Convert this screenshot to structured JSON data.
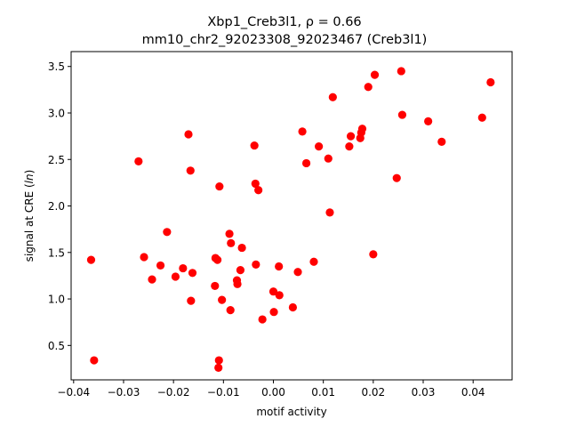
{
  "chart_data": {
    "type": "scatter",
    "title_line1": "Xbp1_Creb3l1, ",
    "title_rho": "ρ = 0.66",
    "title_line2": "mm10_chr2_92023308_92023467 (Creb3l1)",
    "xlabel": "motif activity",
    "ylabel_prefix": "signal at CRE (",
    "ylabel_italic": "ln",
    "ylabel_suffix": ")",
    "xlim": [
      -0.0405,
      0.0478
    ],
    "ylim": [
      0.13,
      3.66
    ],
    "xticks": [
      -0.04,
      -0.03,
      -0.02,
      -0.01,
      0.0,
      0.01,
      0.02,
      0.03,
      0.04
    ],
    "xtick_labels": [
      "−0.04",
      "−0.03",
      "−0.02",
      "−0.01",
      "0.00",
      "0.01",
      "0.02",
      "0.03",
      "0.04"
    ],
    "yticks": [
      0.5,
      1.0,
      1.5,
      2.0,
      2.5,
      3.0,
      3.5
    ],
    "ytick_labels": [
      "0.5",
      "1.0",
      "1.5",
      "2.0",
      "2.5",
      "3.0",
      "3.5"
    ],
    "grid": false,
    "marker_color": "#ff0000",
    "points": [
      {
        "x": -0.0365,
        "y": 1.42
      },
      {
        "x": -0.0359,
        "y": 0.34
      },
      {
        "x": -0.027,
        "y": 2.48
      },
      {
        "x": -0.0259,
        "y": 1.45
      },
      {
        "x": -0.0243,
        "y": 1.21
      },
      {
        "x": -0.0226,
        "y": 1.36
      },
      {
        "x": -0.0213,
        "y": 1.72
      },
      {
        "x": -0.0196,
        "y": 1.24
      },
      {
        "x": -0.0181,
        "y": 1.33
      },
      {
        "x": -0.017,
        "y": 2.77
      },
      {
        "x": -0.0166,
        "y": 2.38
      },
      {
        "x": -0.0165,
        "y": 0.98
      },
      {
        "x": -0.0162,
        "y": 1.28
      },
      {
        "x": -0.0117,
        "y": 1.14
      },
      {
        "x": -0.0116,
        "y": 1.44
      },
      {
        "x": -0.0112,
        "y": 1.42
      },
      {
        "x": -0.011,
        "y": 0.26
      },
      {
        "x": -0.0109,
        "y": 0.34
      },
      {
        "x": -0.0108,
        "y": 2.21
      },
      {
        "x": -0.0103,
        "y": 0.99
      },
      {
        "x": -0.0088,
        "y": 1.7
      },
      {
        "x": -0.0086,
        "y": 0.88
      },
      {
        "x": -0.0085,
        "y": 1.6
      },
      {
        "x": -0.0073,
        "y": 1.2
      },
      {
        "x": -0.0072,
        "y": 1.16
      },
      {
        "x": -0.0066,
        "y": 1.31
      },
      {
        "x": -0.0063,
        "y": 1.55
      },
      {
        "x": -0.0038,
        "y": 2.65
      },
      {
        "x": -0.0036,
        "y": 2.24
      },
      {
        "x": -0.0035,
        "y": 1.37
      },
      {
        "x": -0.003,
        "y": 2.17
      },
      {
        "x": -0.0022,
        "y": 0.78
      },
      {
        "x": 0.0,
        "y": 1.08
      },
      {
        "x": 0.0001,
        "y": 0.86
      },
      {
        "x": 0.0011,
        "y": 1.35
      },
      {
        "x": 0.0012,
        "y": 1.04
      },
      {
        "x": 0.0039,
        "y": 0.91
      },
      {
        "x": 0.0049,
        "y": 1.29
      },
      {
        "x": 0.0058,
        "y": 2.8
      },
      {
        "x": 0.0066,
        "y": 2.46
      },
      {
        "x": 0.0081,
        "y": 1.4
      },
      {
        "x": 0.0091,
        "y": 2.64
      },
      {
        "x": 0.011,
        "y": 2.51
      },
      {
        "x": 0.0113,
        "y": 1.93
      },
      {
        "x": 0.0119,
        "y": 3.17
      },
      {
        "x": 0.0152,
        "y": 2.64
      },
      {
        "x": 0.0155,
        "y": 2.75
      },
      {
        "x": 0.0174,
        "y": 2.73
      },
      {
        "x": 0.0176,
        "y": 2.79
      },
      {
        "x": 0.0178,
        "y": 2.83
      },
      {
        "x": 0.019,
        "y": 3.28
      },
      {
        "x": 0.02,
        "y": 1.48
      },
      {
        "x": 0.0203,
        "y": 3.41
      },
      {
        "x": 0.0247,
        "y": 2.3
      },
      {
        "x": 0.0256,
        "y": 3.45
      },
      {
        "x": 0.0258,
        "y": 2.98
      },
      {
        "x": 0.031,
        "y": 2.91
      },
      {
        "x": 0.0337,
        "y": 2.69
      },
      {
        "x": 0.0418,
        "y": 2.95
      },
      {
        "x": 0.0435,
        "y": 3.33
      }
    ]
  }
}
